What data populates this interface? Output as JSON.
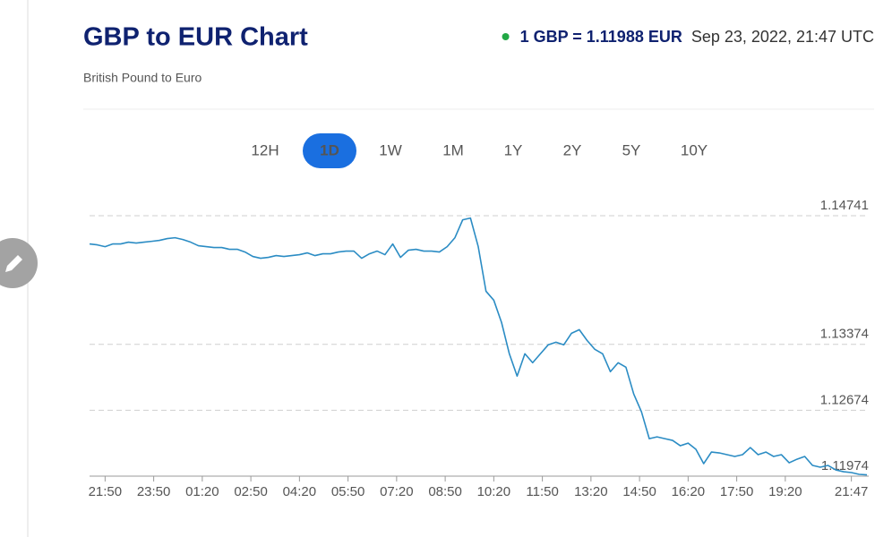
{
  "header": {
    "title": "GBP to EUR Chart",
    "subtitle": "British Pound to Euro",
    "rate": "1 GBP = 1.11988 EUR",
    "timestamp": "Sep 23, 2022, 21:47 UTC"
  },
  "tabs": [
    "12H",
    "1D",
    "1W",
    "1M",
    "1Y",
    "2Y",
    "5Y",
    "10Y"
  ],
  "active_tab": 1,
  "chart_data": {
    "type": "line",
    "color": "#2b8cc4",
    "grid": true,
    "x": [
      0,
      1,
      2,
      3,
      4,
      5,
      6,
      7,
      8,
      9,
      10,
      11,
      12,
      13,
      14,
      15,
      16,
      17,
      18,
      19,
      20,
      21,
      22,
      23,
      24,
      25,
      26,
      27,
      28,
      29,
      30,
      31,
      32,
      33,
      34,
      35,
      36,
      37,
      38,
      39,
      40,
      41,
      42,
      43,
      44,
      45,
      46,
      47,
      48,
      49,
      50,
      51,
      52,
      53,
      54,
      55,
      56,
      57,
      58,
      59,
      60,
      61,
      62,
      63,
      64,
      65,
      66,
      67,
      68,
      69,
      70,
      71,
      72,
      73,
      74,
      75,
      76,
      77,
      78,
      79,
      80,
      81,
      82,
      83,
      84,
      85,
      86,
      87,
      88,
      89,
      90,
      91,
      92,
      93,
      94,
      95,
      96,
      97,
      98,
      99,
      100
    ],
    "values": [
      1.14441,
      1.14431,
      1.14412,
      1.14441,
      1.14441,
      1.1446,
      1.1445,
      1.1446,
      1.14469,
      1.14479,
      1.14498,
      1.14507,
      1.14488,
      1.1446,
      1.14422,
      1.14412,
      1.14403,
      1.14403,
      1.14384,
      1.14384,
      1.14355,
      1.14308,
      1.14289,
      1.14298,
      1.14317,
      1.14308,
      1.14317,
      1.14327,
      1.14346,
      1.14317,
      1.14336,
      1.14336,
      1.14355,
      1.14365,
      1.14365,
      1.14289,
      1.14336,
      1.14365,
      1.14327,
      1.14441,
      1.14298,
      1.14374,
      1.14384,
      1.14365,
      1.14365,
      1.14355,
      1.14412,
      1.14507,
      1.14697,
      1.14716,
      1.14412,
      1.13938,
      1.13843,
      1.13606,
      1.13274,
      1.13037,
      1.13274,
      1.13179,
      1.13274,
      1.13369,
      1.13397,
      1.13369,
      1.13492,
      1.1353,
      1.13416,
      1.13321,
      1.13274,
      1.13084,
      1.13179,
      1.13131,
      1.12847,
      1.12657,
      1.12372,
      1.12391,
      1.12372,
      1.12354,
      1.12297,
      1.12325,
      1.12259,
      1.12107,
      1.1223,
      1.12221,
      1.12202,
      1.12183,
      1.12202,
      1.12278,
      1.12202,
      1.1223,
      1.12183,
      1.12202,
      1.12116,
      1.12154,
      1.12183,
      1.12088,
      1.12069,
      1.12088,
      1.1204,
      1.12021,
      1.12012,
      1.11993,
      1.11988
    ],
    "xlim": [
      0,
      100
    ],
    "xticks": [
      {
        "value": 2,
        "label": "21:50"
      },
      {
        "value": 8.25,
        "label": "23:50"
      },
      {
        "value": 14.5,
        "label": "01:20"
      },
      {
        "value": 20.75,
        "label": "02:50"
      },
      {
        "value": 27,
        "label": "04:20"
      },
      {
        "value": 33.25,
        "label": "05:50"
      },
      {
        "value": 39.5,
        "label": "07:20"
      },
      {
        "value": 45.75,
        "label": "08:50"
      },
      {
        "value": 52,
        "label": "10:20"
      },
      {
        "value": 58.25,
        "label": "11:50"
      },
      {
        "value": 64.5,
        "label": "13:20"
      },
      {
        "value": 70.75,
        "label": "14:50"
      },
      {
        "value": 77,
        "label": "16:20"
      },
      {
        "value": 83.25,
        "label": "17:50"
      },
      {
        "value": 89.5,
        "label": "19:20"
      },
      {
        "value": 98,
        "label": "21:47"
      }
    ],
    "ylim": [
      1.11974,
      1.14741
    ],
    "yticks": [
      1.14741,
      1.13374,
      1.12674,
      1.11974
    ]
  }
}
